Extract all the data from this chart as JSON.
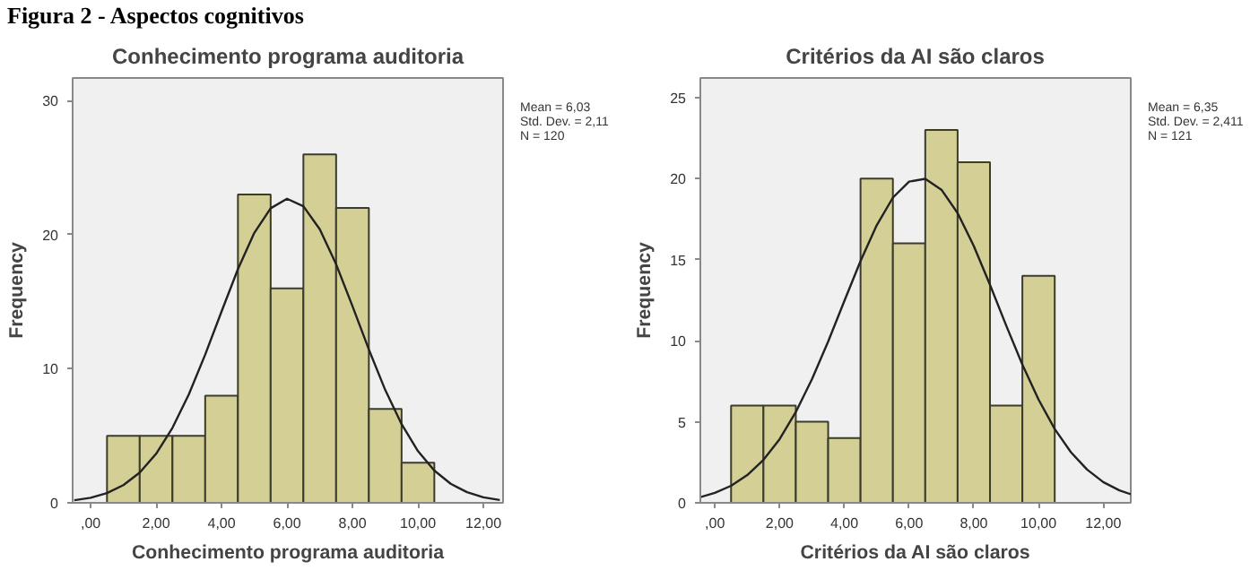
{
  "chart_data": [
    {
      "type": "histogram",
      "title": "Conhecimento programa auditoria",
      "xlabel": "Conhecimento programa auditoria",
      "ylabel": "Frequency",
      "annotations": [
        "Figura 2 - Aspectos cognitivos",
        "Mean = 6,03",
        "Std. Dev. = 2,11",
        "N = 120"
      ],
      "bins": [
        0.5,
        1.5,
        2.5,
        3.5,
        4.5,
        5.5,
        6.5,
        7.5,
        8.5,
        9.5,
        10.5
      ],
      "values": [
        5,
        5,
        5,
        8,
        23,
        16,
        26,
        22,
        7,
        3
      ],
      "color": "#d3cf95",
      "series": [
        {
          "type": "line",
          "color": "#222222",
          "x": [
            -0.5,
            0,
            0.5,
            1,
            1.5,
            2,
            2.5,
            3,
            3.5,
            4,
            4.5,
            5,
            5.5,
            6,
            6.5,
            7,
            7.5,
            8,
            8.5,
            9,
            9.5,
            10,
            10.5,
            11,
            11.5,
            12,
            12.5
          ],
          "values": [
            0.19,
            0.38,
            0.73,
            1.32,
            2.26,
            3.66,
            5.6,
            8.09,
            11.06,
            14.28,
            17.44,
            20.14,
            21.98,
            22.69,
            22.13,
            20.41,
            17.8,
            14.67,
            11.44,
            8.42,
            5.87,
            3.86,
            2.41,
            1.42,
            0.79,
            0.41,
            0.21
          ]
        }
      ],
      "xlim": [
        -0.55,
        12.6
      ],
      "ylim": [
        0,
        31.7
      ],
      "xticks": [
        {
          "value": 0,
          "label": ",00"
        },
        {
          "value": 2,
          "label": "2,00"
        },
        {
          "value": 4,
          "label": "4,00"
        },
        {
          "value": 6,
          "label": "6,00"
        },
        {
          "value": 8,
          "label": "8,00"
        },
        {
          "value": 10,
          "label": "10,00"
        },
        {
          "value": 12,
          "label": "12,00"
        }
      ],
      "yticks": [
        0,
        10,
        20,
        30
      ],
      "grid": false
    },
    {
      "type": "histogram",
      "title": "Critérios da AI são claros",
      "xlabel": "Critérios da AI são claros",
      "ylabel": "Frequency",
      "annotations": [
        "Mean = 6,35",
        "Std. Dev. = 2,411",
        "N = 121"
      ],
      "bins": [
        0.5,
        1.5,
        2.5,
        3.5,
        4.5,
        5.5,
        6.5,
        7.5,
        8.5,
        9.5,
        10.5
      ],
      "values": [
        6,
        6,
        5,
        4,
        20,
        16,
        23,
        21,
        6,
        14
      ],
      "color": "#d3cf95",
      "series": [
        {
          "type": "line",
          "color": "#222222",
          "x": [
            -0.45,
            0,
            0.5,
            1,
            1.5,
            2,
            2.5,
            3,
            3.5,
            4,
            4.5,
            5,
            5.5,
            6,
            6.5,
            7,
            7.5,
            8,
            8.5,
            9,
            9.5,
            10,
            10.5,
            11,
            11.5,
            12,
            12.5,
            12.85
          ],
          "values": [
            0.35,
            0.62,
            1.05,
            1.71,
            2.65,
            3.93,
            5.6,
            7.63,
            9.95,
            12.45,
            14.91,
            17.12,
            18.82,
            19.81,
            19.98,
            19.31,
            17.87,
            15.84,
            13.45,
            10.94,
            8.53,
            6.37,
            4.55,
            3.12,
            2.05,
            1.28,
            0.77,
            0.53
          ]
        }
      ],
      "xlim": [
        -0.45,
        12.85
      ],
      "ylim": [
        0,
        26.2
      ],
      "xticks": [
        {
          "value": 0,
          "label": ",00"
        },
        {
          "value": 2,
          "label": "2,00"
        },
        {
          "value": 4,
          "label": "4,00"
        },
        {
          "value": 6,
          "label": "6,00"
        },
        {
          "value": 8,
          "label": "8,00"
        },
        {
          "value": 10,
          "label": "10,00"
        },
        {
          "value": 12,
          "label": "12,00"
        }
      ],
      "yticks": [
        0,
        5,
        10,
        15,
        20,
        25
      ],
      "grid": false
    }
  ]
}
